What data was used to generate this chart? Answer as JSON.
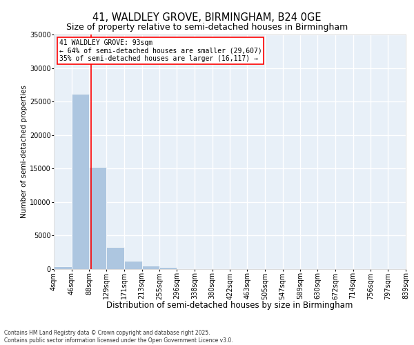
{
  "title1": "41, WALDLEY GROVE, BIRMINGHAM, B24 0GE",
  "title2": "Size of property relative to semi-detached houses in Birmingham",
  "xlabel": "Distribution of semi-detached houses by size in Birmingham",
  "ylabel": "Number of semi-detached properties",
  "footnote1": "Contains HM Land Registry data © Crown copyright and database right 2025.",
  "footnote2": "Contains public sector information licensed under the Open Government Licence v3.0.",
  "annotation_line1": "41 WALDLEY GROVE: 93sqm",
  "annotation_line2": "← 64% of semi-detached houses are smaller (29,607)",
  "annotation_line3": "35% of semi-detached houses are larger (16,117) →",
  "property_sqm": 93,
  "bin_edges": [
    4,
    46,
    88,
    129,
    171,
    213,
    255,
    296,
    338,
    380,
    422,
    463,
    505,
    547,
    589,
    630,
    672,
    714,
    756,
    797,
    839
  ],
  "bin_labels": [
    "4sqm",
    "46sqm",
    "88sqm",
    "129sqm",
    "171sqm",
    "213sqm",
    "255sqm",
    "296sqm",
    "338sqm",
    "380sqm",
    "422sqm",
    "463sqm",
    "505sqm",
    "547sqm",
    "589sqm",
    "630sqm",
    "672sqm",
    "714sqm",
    "756sqm",
    "797sqm",
    "839sqm"
  ],
  "bar_values": [
    400,
    26100,
    15200,
    3300,
    1200,
    500,
    300,
    0,
    0,
    0,
    0,
    0,
    0,
    0,
    0,
    0,
    0,
    0,
    0,
    0
  ],
  "bar_color": "#adc6e0",
  "vline_x": 93,
  "vline_color": "red",
  "annotation_box_color": "red",
  "ylim": [
    0,
    35000
  ],
  "yticks": [
    0,
    5000,
    10000,
    15000,
    20000,
    25000,
    30000,
    35000
  ],
  "bg_color": "#e8f0f8",
  "grid_color": "white",
  "title1_fontsize": 10.5,
  "title2_fontsize": 9,
  "xlabel_fontsize": 8.5,
  "ylabel_fontsize": 7.5,
  "tick_fontsize": 7,
  "annotation_fontsize": 7,
  "footnote_fontsize": 5.5
}
